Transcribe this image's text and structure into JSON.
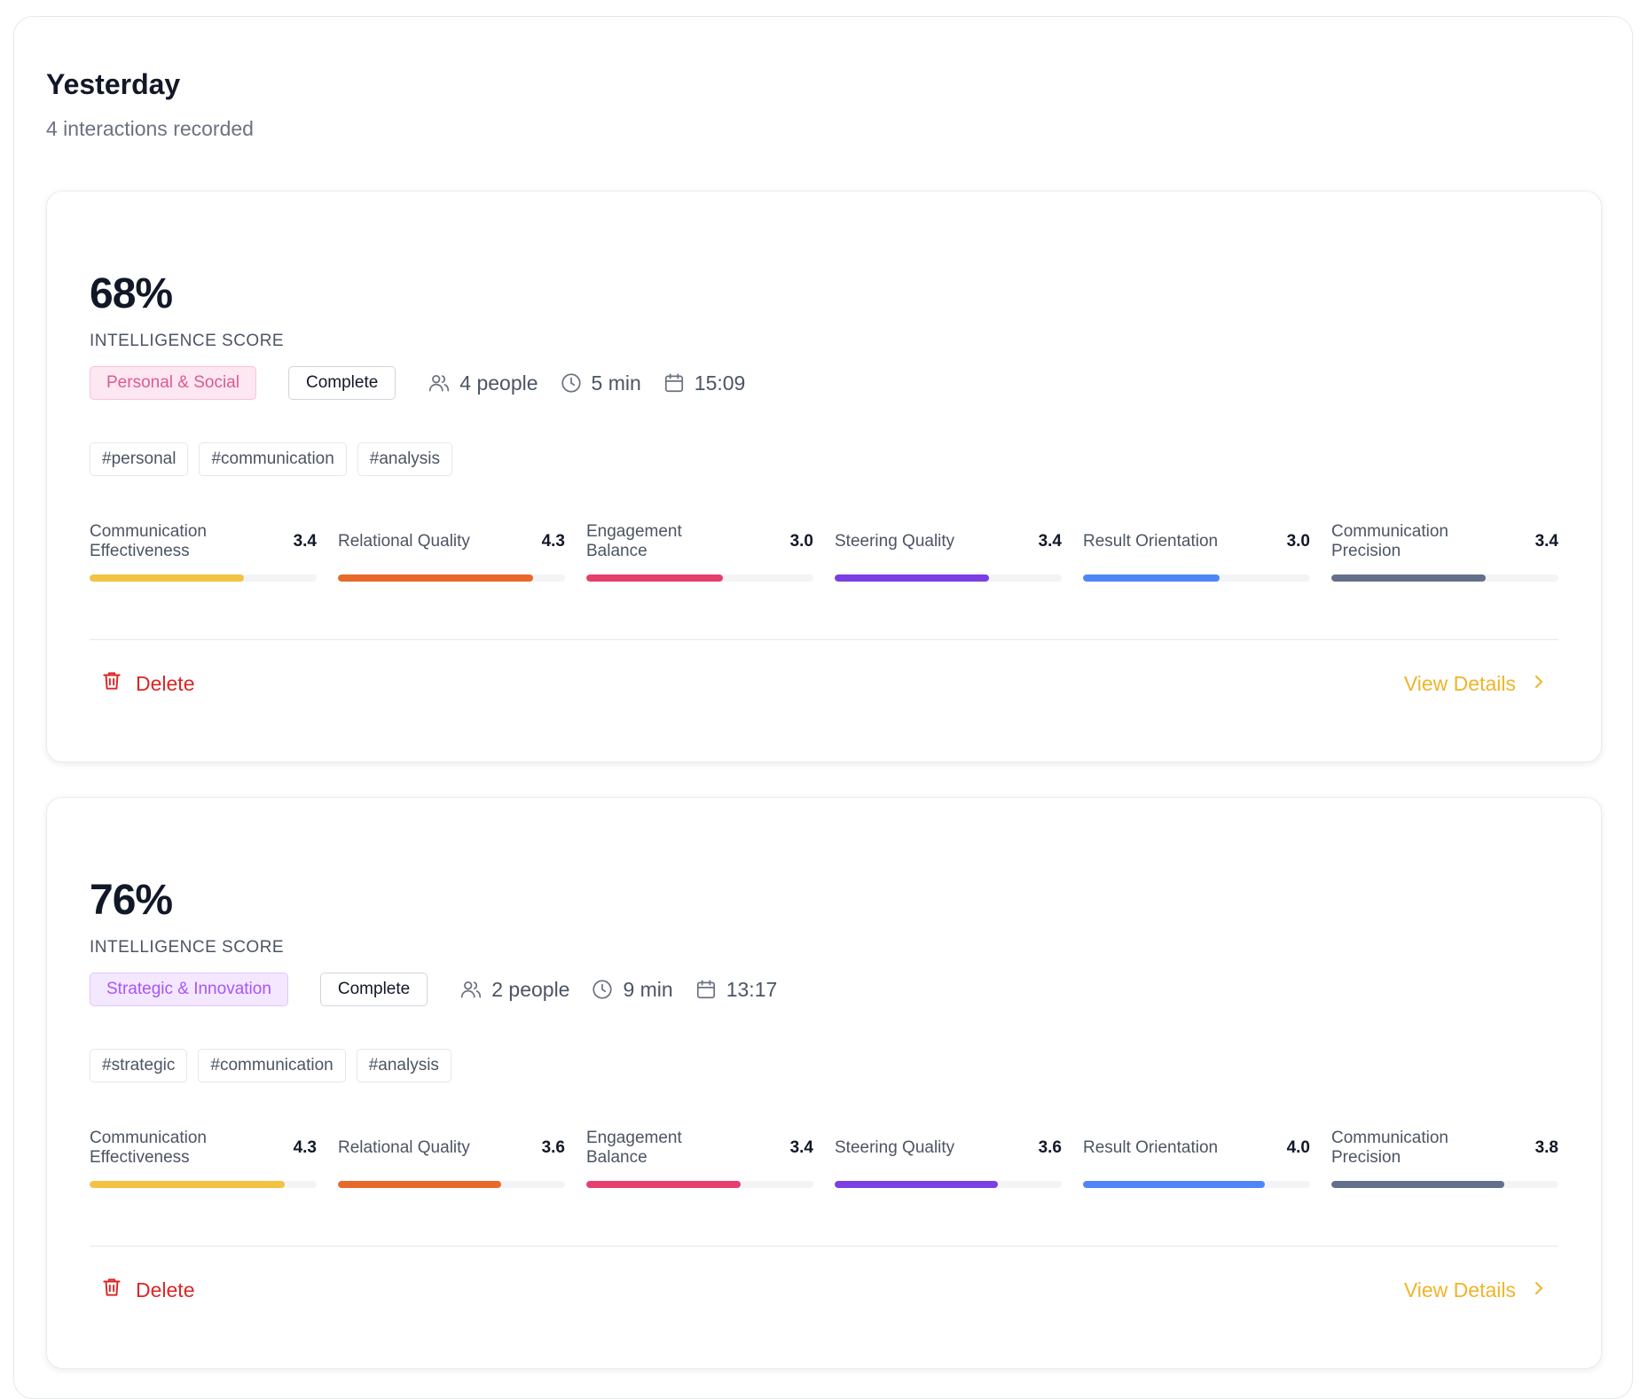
{
  "section": {
    "title": "Yesterday",
    "subtitle": "4 interactions recorded"
  },
  "cards": [
    {
      "score": "68%",
      "score_label": "INTELLIGENCE SCORE",
      "category": "Personal & Social",
      "category_color": "#db5b93",
      "category_bg": "#fde7f1",
      "category_border": "#f9c3da",
      "status": "Complete",
      "people": "4 people",
      "duration": "5 min",
      "time": "15:09",
      "tags": [
        "#personal",
        "#communication",
        "#analysis"
      ],
      "metrics": [
        {
          "name": "Communication Effectiveness",
          "value": "3.4",
          "level": 0.68,
          "color": "#f4c242"
        },
        {
          "name": "Relational Quality",
          "value": "4.3",
          "level": 0.86,
          "color": "#e8692a"
        },
        {
          "name": "Engagement Balance",
          "value": "3.0",
          "level": 0.6,
          "color": "#e63e6d"
        },
        {
          "name": "Steering Quality",
          "value": "3.4",
          "level": 0.68,
          "color": "#7b3fe4"
        },
        {
          "name": "Result Orientation",
          "value": "3.0",
          "level": 0.6,
          "color": "#4f86f7"
        },
        {
          "name": "Communication Precision",
          "value": "3.4",
          "level": 0.68,
          "color": "#64708a"
        }
      ],
      "delete_label": "Delete",
      "view_label": "View Details"
    },
    {
      "score": "76%",
      "score_label": "INTELLIGENCE SCORE",
      "category": "Strategic & Innovation",
      "category_color": "#a855f7",
      "category_bg": "#f3e8ff",
      "category_border": "#e0c6fb",
      "status": "Complete",
      "people": "2 people",
      "duration": "9 min",
      "time": "13:17",
      "tags": [
        "#strategic",
        "#communication",
        "#analysis"
      ],
      "metrics": [
        {
          "name": "Communication Effectiveness",
          "value": "4.3",
          "level": 0.86,
          "color": "#f4c242"
        },
        {
          "name": "Relational Quality",
          "value": "3.6",
          "level": 0.72,
          "color": "#e8692a"
        },
        {
          "name": "Engagement Balance",
          "value": "3.4",
          "level": 0.68,
          "color": "#e63e6d"
        },
        {
          "name": "Steering Quality",
          "value": "3.6",
          "level": 0.72,
          "color": "#7b3fe4"
        },
        {
          "name": "Result Orientation",
          "value": "4.0",
          "level": 0.8,
          "color": "#4f86f7"
        },
        {
          "name": "Communication Precision",
          "value": "3.8",
          "level": 0.76,
          "color": "#64708a"
        }
      ],
      "delete_label": "Delete",
      "view_label": "View Details"
    }
  ],
  "icons": {
    "people": "users-icon",
    "duration": "clock-icon",
    "time": "calendar-icon",
    "delete": "trash-icon",
    "view": "chevron-right-icon"
  }
}
